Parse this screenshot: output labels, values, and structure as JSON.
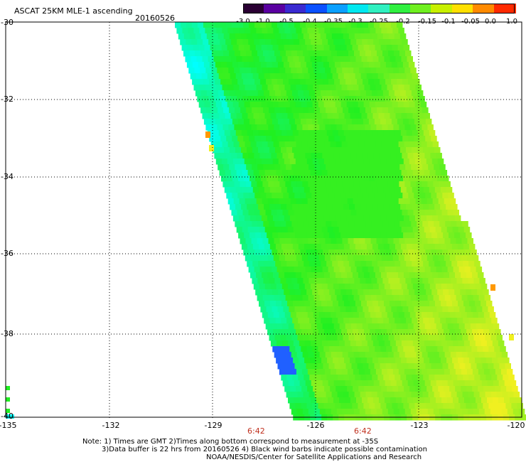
{
  "title": "ASCAT 25KM MLE-1 ascending",
  "date": "20160526",
  "colorbar": {
    "labels": [
      "-3.0",
      "-1.0",
      "-0.5",
      "-0.4",
      "-0.35",
      "-0.3",
      "-0.25",
      "-0.2",
      "-0.15",
      "-0.1",
      "-0.05",
      "0.0",
      "1.0"
    ],
    "colors": [
      "#2a0033",
      "#5a00a0",
      "#3a2ad0",
      "#0a50ff",
      "#0aa0ff",
      "#00e8f0",
      "#30f0c0",
      "#30f040",
      "#70f020",
      "#c8f000",
      "#ffe000",
      "#ff8a00",
      "#ff2a00"
    ]
  },
  "lat_labels": [
    "-30",
    "-32",
    "-34",
    "-36",
    "-38",
    "-40"
  ],
  "lon_labels": [
    "-135",
    "-132",
    "-129",
    "-126",
    "-123",
    "-120"
  ],
  "time_labels": [
    "6:42",
    "6:42"
  ],
  "notes": {
    "line1": "Note: 1) Times are GMT 2)Times along bottom correspond to measurement at -35S",
    "line2": "3)Data buffer is 22 hrs from 20160526 4) Black wind barbs indicate possible contamination",
    "line3": "NOAA/NESDIS/Center for Satellite Applications and Research"
  },
  "palette": {
    "low": "#00ffff",
    "mid": "#20f020",
    "high": "#f0f020",
    "hot": "#ff9900",
    "cold": "#2060ff"
  }
}
